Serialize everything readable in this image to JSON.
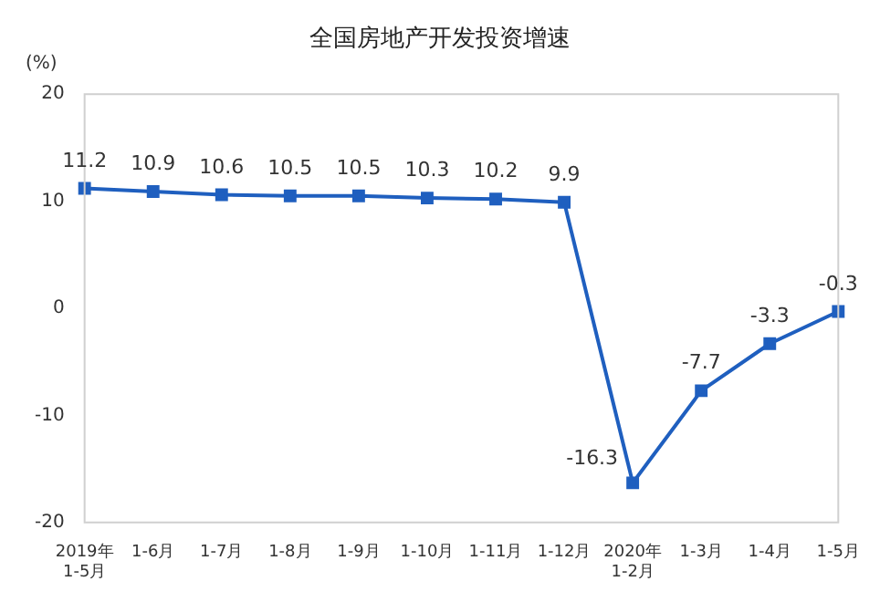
{
  "chart_data": {
    "type": "line",
    "title": "全国房地产开发投资增速",
    "ylabel": "(%)",
    "categories": [
      "2019年\n1-5月",
      "1-6月",
      "1-7月",
      "1-8月",
      "1-9月",
      "1-10月",
      "1-11月",
      "1-12月",
      "2020年\n1-2月",
      "1-3月",
      "1-4月",
      "1-5月"
    ],
    "series": [
      {
        "color": "#1f5fbf",
        "values": [
          11.2,
          10.9,
          10.6,
          10.5,
          10.5,
          10.3,
          10.2,
          9.9,
          -16.3,
          -7.7,
          -3.3,
          -0.3
        ]
      }
    ],
    "ylim": [
      -20,
      20
    ],
    "yticks": [
      -20,
      -10,
      0,
      10,
      20
    ],
    "grid": false,
    "legend": false,
    "marker": "square",
    "line_style": "solid",
    "data_labels": true
  }
}
